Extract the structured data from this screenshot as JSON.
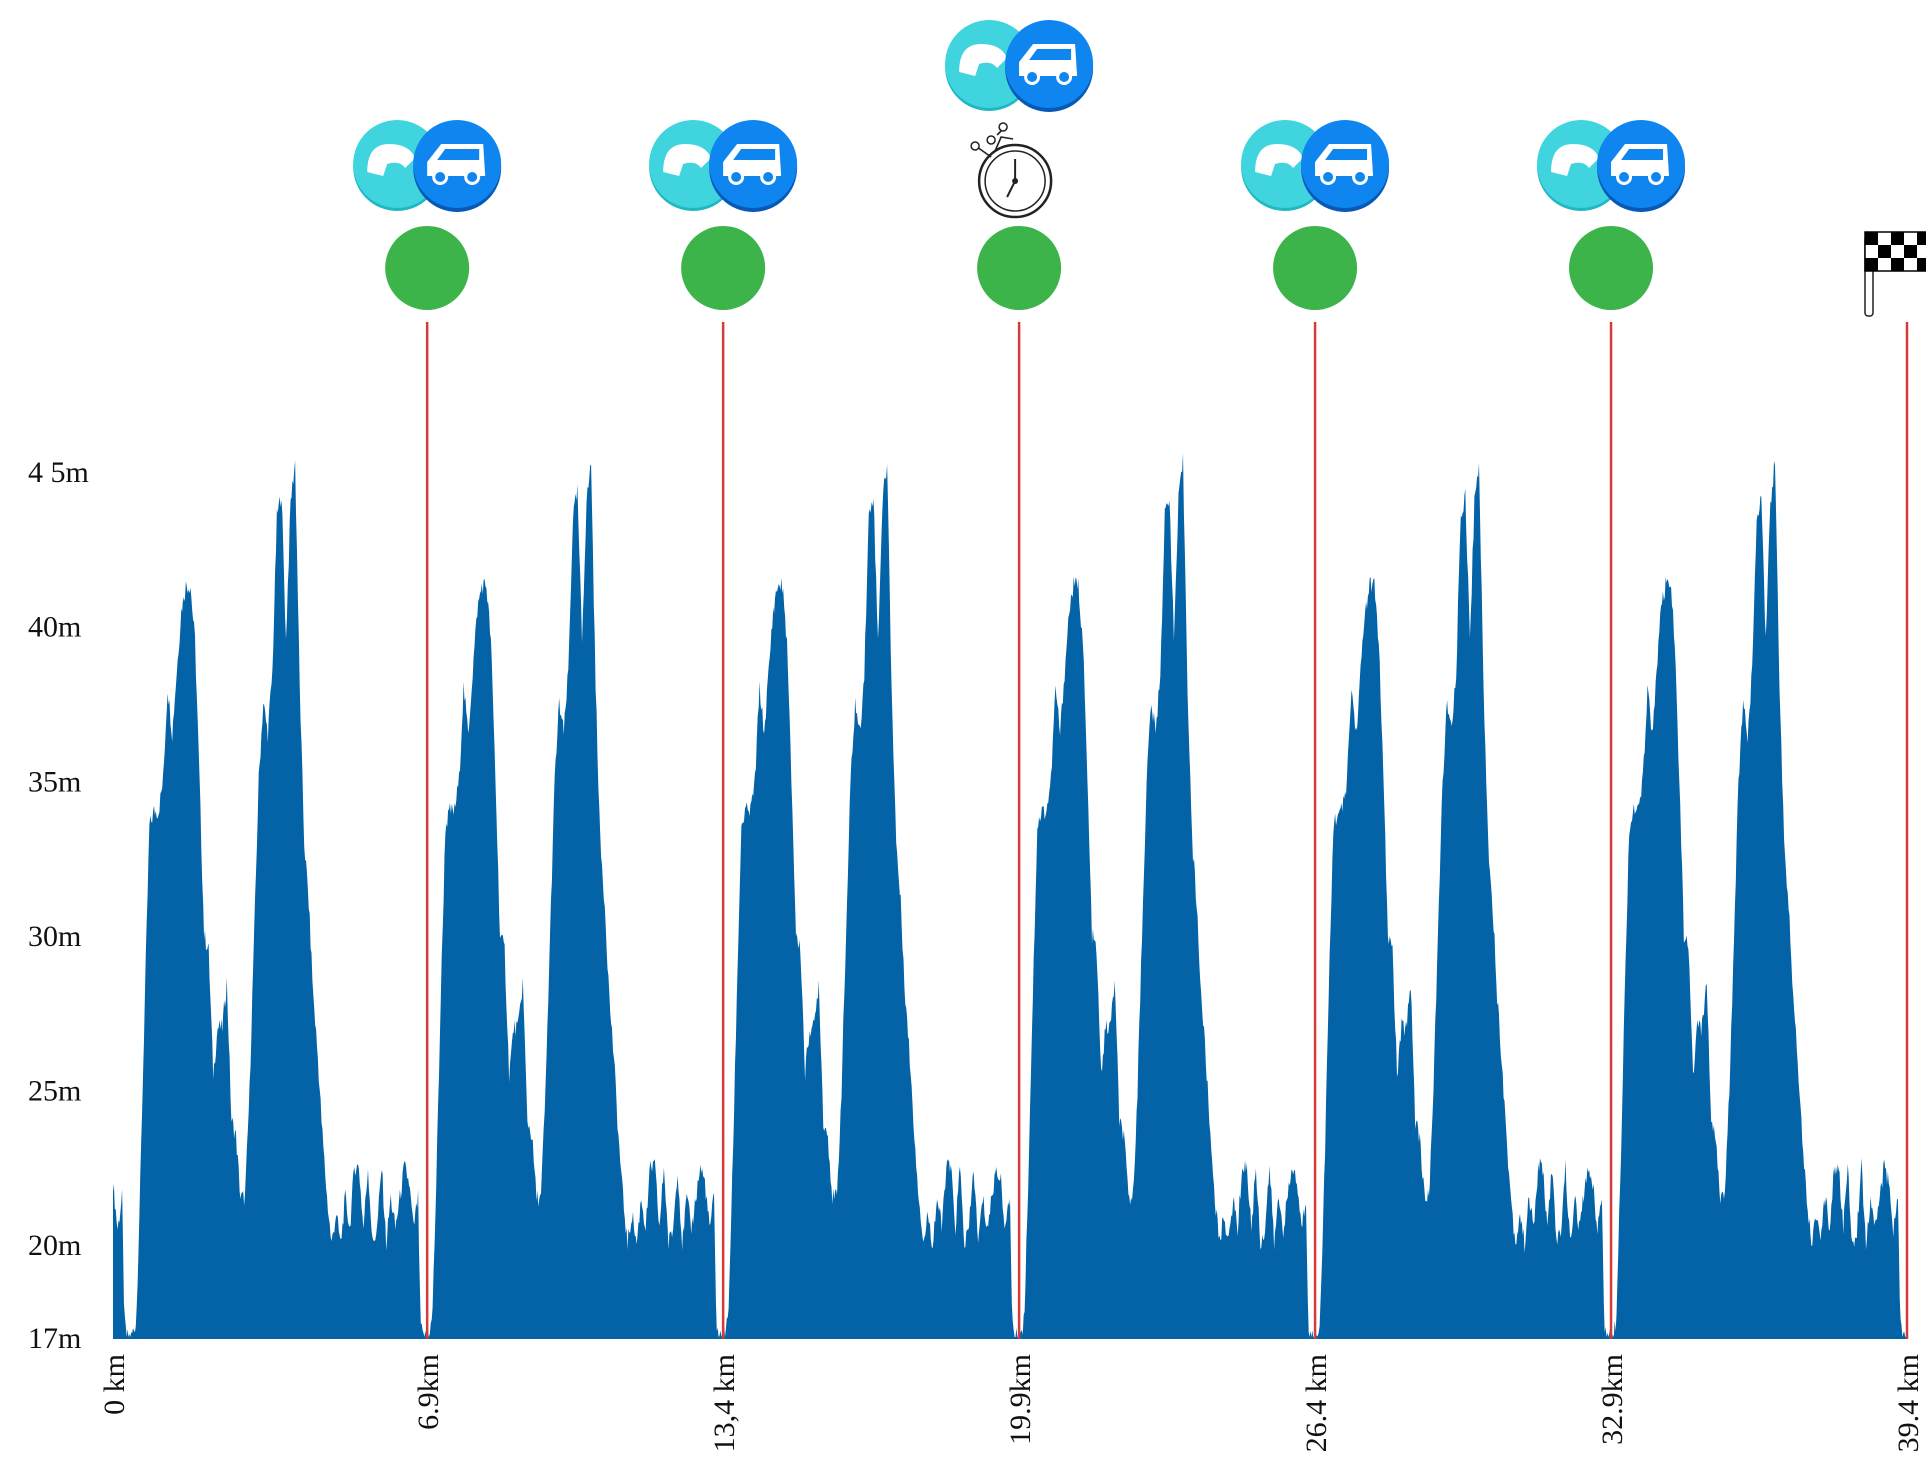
{
  "chart_data": {
    "type": "area",
    "title": "",
    "xlabel": "",
    "ylabel": "",
    "xlim": [
      0,
      39.4
    ],
    "ylim": [
      17,
      45
    ],
    "y_ticks": [
      {
        "value": 45,
        "label": "4 5m"
      },
      {
        "value": 40,
        "label": "40m"
      },
      {
        "value": 35,
        "label": "35m"
      },
      {
        "value": 30,
        "label": "30m"
      },
      {
        "value": 25,
        "label": "25m"
      },
      {
        "value": 20,
        "label": "20m"
      },
      {
        "value": 17,
        "label": "17m"
      }
    ],
    "x_ticks": [
      {
        "value": 0,
        "label": "0 km"
      },
      {
        "value": 6.9,
        "label": "6.9km"
      },
      {
        "value": 13.4,
        "label": "13,4 km"
      },
      {
        "value": 19.9,
        "label": "19.9km"
      },
      {
        "value": 26.4,
        "label": "26.4 km"
      },
      {
        "value": 32.9,
        "label": "32.9km"
      },
      {
        "value": 39.4,
        "label": "39.4 km"
      }
    ],
    "lap_length_km": 6.5,
    "lap_offset_km": 0.4,
    "lap_profile": {
      "km": [
        0,
        0.11,
        0.2,
        0.3,
        0.4,
        0.5,
        0.6,
        0.7,
        0.8,
        0.9,
        1.0,
        1.1,
        1.2,
        1.3,
        1.4,
        1.5,
        1.6,
        1.7,
        1.8,
        1.9,
        2.0,
        2.1,
        2.2,
        2.3,
        2.4,
        2.5,
        2.6,
        2.7,
        2.8,
        2.9,
        3.0,
        3.1,
        3.2,
        3.3,
        3.4,
        3.5,
        3.6,
        3.7,
        3.8,
        3.9,
        4.0,
        4.1,
        4.2,
        4.3,
        4.4,
        4.5,
        4.6,
        4.7,
        4.8,
        4.9,
        5.0,
        5.1,
        5.2,
        5.3,
        5.4,
        5.5,
        5.6,
        5.7,
        5.8,
        5.9,
        6.0,
        6.1,
        6.2,
        6.3,
        6.35,
        6.4,
        6.45,
        6.5
      ],
      "elevation_m": [
        17.0,
        17.5,
        22.0,
        28.0,
        33.5,
        34.0,
        34.0,
        35.0,
        38.0,
        36.5,
        38.5,
        40.5,
        41.3,
        41.3,
        39.5,
        35.0,
        30.0,
        29.5,
        25.5,
        27.0,
        27.0,
        28.5,
        24.0,
        23.5,
        21.5,
        21.5,
        25.0,
        30.0,
        35.0,
        37.5,
        36.5,
        38.5,
        43.5,
        44.3,
        39.5,
        44.0,
        45.3,
        38.0,
        33.0,
        31.0,
        28.0,
        26.0,
        23.5,
        21.5,
        20.0,
        21.0,
        20.0,
        21.5,
        20.5,
        22.5,
        22.5,
        20.5,
        22.5,
        20.0,
        20.5,
        22.5,
        20.0,
        21.5,
        20.5,
        21.5,
        22.5,
        22.0,
        20.5,
        21.5,
        17.5,
        17.0,
        17.0,
        17.0
      ]
    },
    "color": "#0363a6",
    "marker_line_color": "#d83a3a",
    "marker_dot_color": "#3db44a",
    "markers": [
      {
        "km": 6.9,
        "icons": [
          "feed-zone-icon",
          "team-car-icon"
        ],
        "dot": true
      },
      {
        "km": 13.4,
        "icons": [
          "feed-zone-icon",
          "team-car-icon"
        ],
        "dot": true
      },
      {
        "km": 19.9,
        "icons": [
          "feed-zone-icon",
          "team-car-icon",
          "stopwatch-icon"
        ],
        "dot": true
      },
      {
        "km": 26.4,
        "icons": [
          "feed-zone-icon",
          "team-car-icon"
        ],
        "dot": true
      },
      {
        "km": 32.9,
        "icons": [
          "feed-zone-icon",
          "team-car-icon"
        ],
        "dot": true
      },
      {
        "km": 39.4,
        "icons": [
          "finish-flag-icon"
        ],
        "dot": false
      }
    ]
  }
}
